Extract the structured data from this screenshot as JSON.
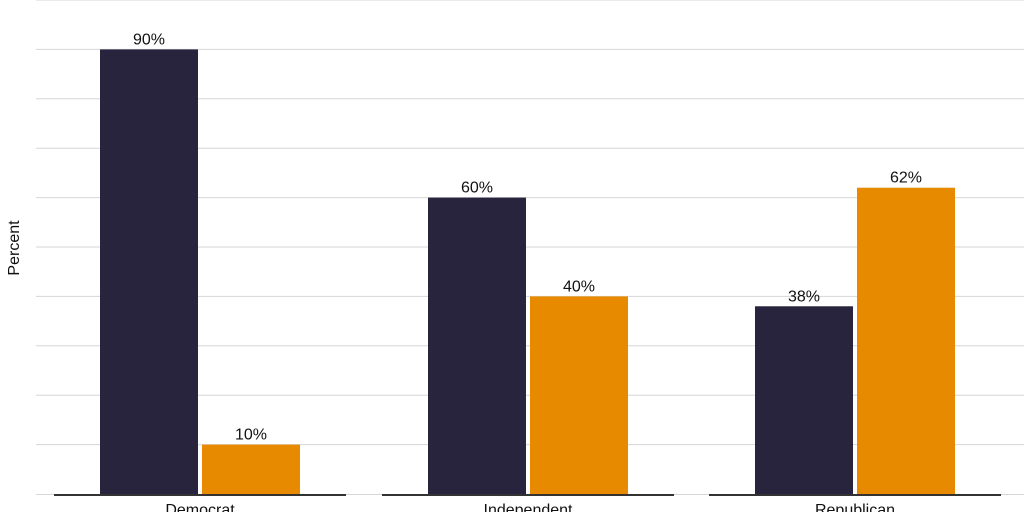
{
  "chart_data": {
    "type": "bar",
    "ylabel": "Percent",
    "ylim": [
      0,
      90
    ],
    "grid": true,
    "categories": [
      "Democrat",
      "Independent",
      "Republican"
    ],
    "series": [
      {
        "color": "#29243d",
        "values": [
          90,
          60,
          38
        ],
        "labels": [
          "90%",
          "60%",
          "38%"
        ]
      },
      {
        "color": "#e88a00",
        "values": [
          10,
          40,
          62
        ],
        "labels": [
          "10%",
          "40%",
          "62%"
        ]
      }
    ]
  }
}
